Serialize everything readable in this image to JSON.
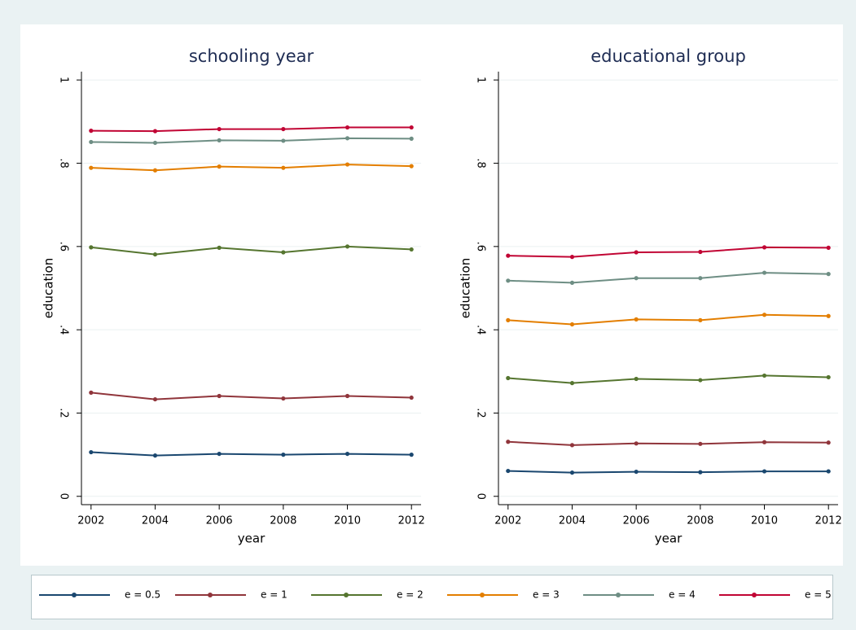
{
  "chart_data": [
    {
      "type": "line",
      "title": "schooling year",
      "xlabel": "year",
      "ylabel": "education",
      "x": [
        2002,
        2004,
        2006,
        2008,
        2010,
        2012
      ],
      "xlim": [
        2001.7,
        2012.3
      ],
      "xticks": [
        2002,
        2004,
        2006,
        2008,
        2010,
        2012
      ],
      "ylim": [
        -0.02,
        1.02
      ],
      "yticks": [
        0,
        {
          "value": 0.2,
          "label": ".2"
        },
        {
          "value": 0.4,
          "label": ".4"
        },
        {
          "value": 0.6,
          "label": ".6"
        },
        {
          "value": 0.8,
          "label": ".8"
        },
        1
      ],
      "grid": true,
      "series": [
        {
          "name": "e = 0.5",
          "color": "#1a476f",
          "values": [
            0.106,
            0.098,
            0.102,
            0.1,
            0.102,
            0.1
          ]
        },
        {
          "name": "e = 1",
          "color": "#90353b",
          "values": [
            0.249,
            0.233,
            0.241,
            0.235,
            0.241,
            0.237
          ]
        },
        {
          "name": "e = 2",
          "color": "#55752f",
          "values": [
            0.598,
            0.581,
            0.597,
            0.586,
            0.6,
            0.593
          ]
        },
        {
          "name": "e = 3",
          "color": "#e37e00",
          "values": [
            0.789,
            0.783,
            0.792,
            0.789,
            0.797,
            0.793
          ]
        },
        {
          "name": "e = 4",
          "color": "#6e8e84",
          "values": [
            0.851,
            0.849,
            0.855,
            0.854,
            0.86,
            0.859
          ]
        },
        {
          "name": "e = 5",
          "color": "#c10534",
          "values": [
            0.878,
            0.877,
            0.882,
            0.882,
            0.886,
            0.886
          ]
        }
      ]
    },
    {
      "type": "line",
      "title": "educational group",
      "xlabel": "year",
      "ylabel": "education",
      "x": [
        2002,
        2004,
        2006,
        2008,
        2010,
        2012
      ],
      "xlim": [
        2001.7,
        2012.3
      ],
      "xticks": [
        2002,
        2004,
        2006,
        2008,
        2010,
        2012
      ],
      "ylim": [
        -0.02,
        1.02
      ],
      "yticks": [
        0,
        {
          "value": 0.2,
          "label": ".2"
        },
        {
          "value": 0.4,
          "label": ".4"
        },
        {
          "value": 0.6,
          "label": ".6"
        },
        {
          "value": 0.8,
          "label": ".8"
        },
        1
      ],
      "grid": true,
      "series": [
        {
          "color": "#1a476f",
          "values": [
            0.061,
            0.057,
            0.059,
            0.058,
            0.06,
            0.06
          ]
        },
        {
          "color": "#90353b",
          "values": [
            0.131,
            0.123,
            0.127,
            0.126,
            0.13,
            0.129
          ]
        },
        {
          "color": "#55752f",
          "values": [
            0.284,
            0.272,
            0.282,
            0.279,
            0.29,
            0.286
          ]
        },
        {
          "color": "#e37e00",
          "values": [
            0.423,
            0.413,
            0.425,
            0.423,
            0.436,
            0.433
          ]
        },
        {
          "color": "#6e8e84",
          "values": [
            0.518,
            0.513,
            0.524,
            0.524,
            0.537,
            0.534
          ]
        },
        {
          "color": "#c10534",
          "values": [
            0.578,
            0.575,
            0.586,
            0.587,
            0.598,
            0.597
          ]
        }
      ]
    }
  ]
}
